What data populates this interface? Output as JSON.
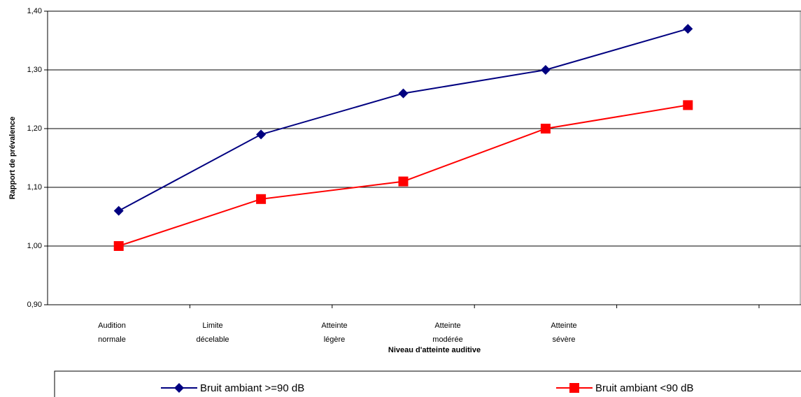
{
  "chart_data": {
    "type": "line",
    "y_label": "Rapport de prévalence",
    "x_label": "Niveau d'atteinte auditive",
    "categories": [
      "Audition normale",
      "Limite décelable",
      "Atteinte légère",
      "Atteinte modérée",
      "Atteinte sévère"
    ],
    "series": [
      {
        "name": "Bruit ambiant >=90 dB",
        "color": "#000080",
        "marker": "diamond",
        "values": [
          1.06,
          1.19,
          1.26,
          1.3,
          1.37
        ]
      },
      {
        "name": "Bruit ambiant <90 dB",
        "color": "#ff0000",
        "marker": "square",
        "values": [
          1.0,
          1.08,
          1.11,
          1.2,
          1.24
        ]
      }
    ],
    "ylim": [
      0.9,
      1.4
    ],
    "yticks": [
      {
        "value": 0.9,
        "label": "0,90"
      },
      {
        "value": 1.0,
        "label": "1,00"
      },
      {
        "value": 1.1,
        "label": "1,10"
      },
      {
        "value": 1.2,
        "label": "1,20"
      },
      {
        "value": 1.3,
        "label": "1,30"
      },
      {
        "value": 1.4,
        "label": "1,40"
      }
    ],
    "grid": true
  }
}
